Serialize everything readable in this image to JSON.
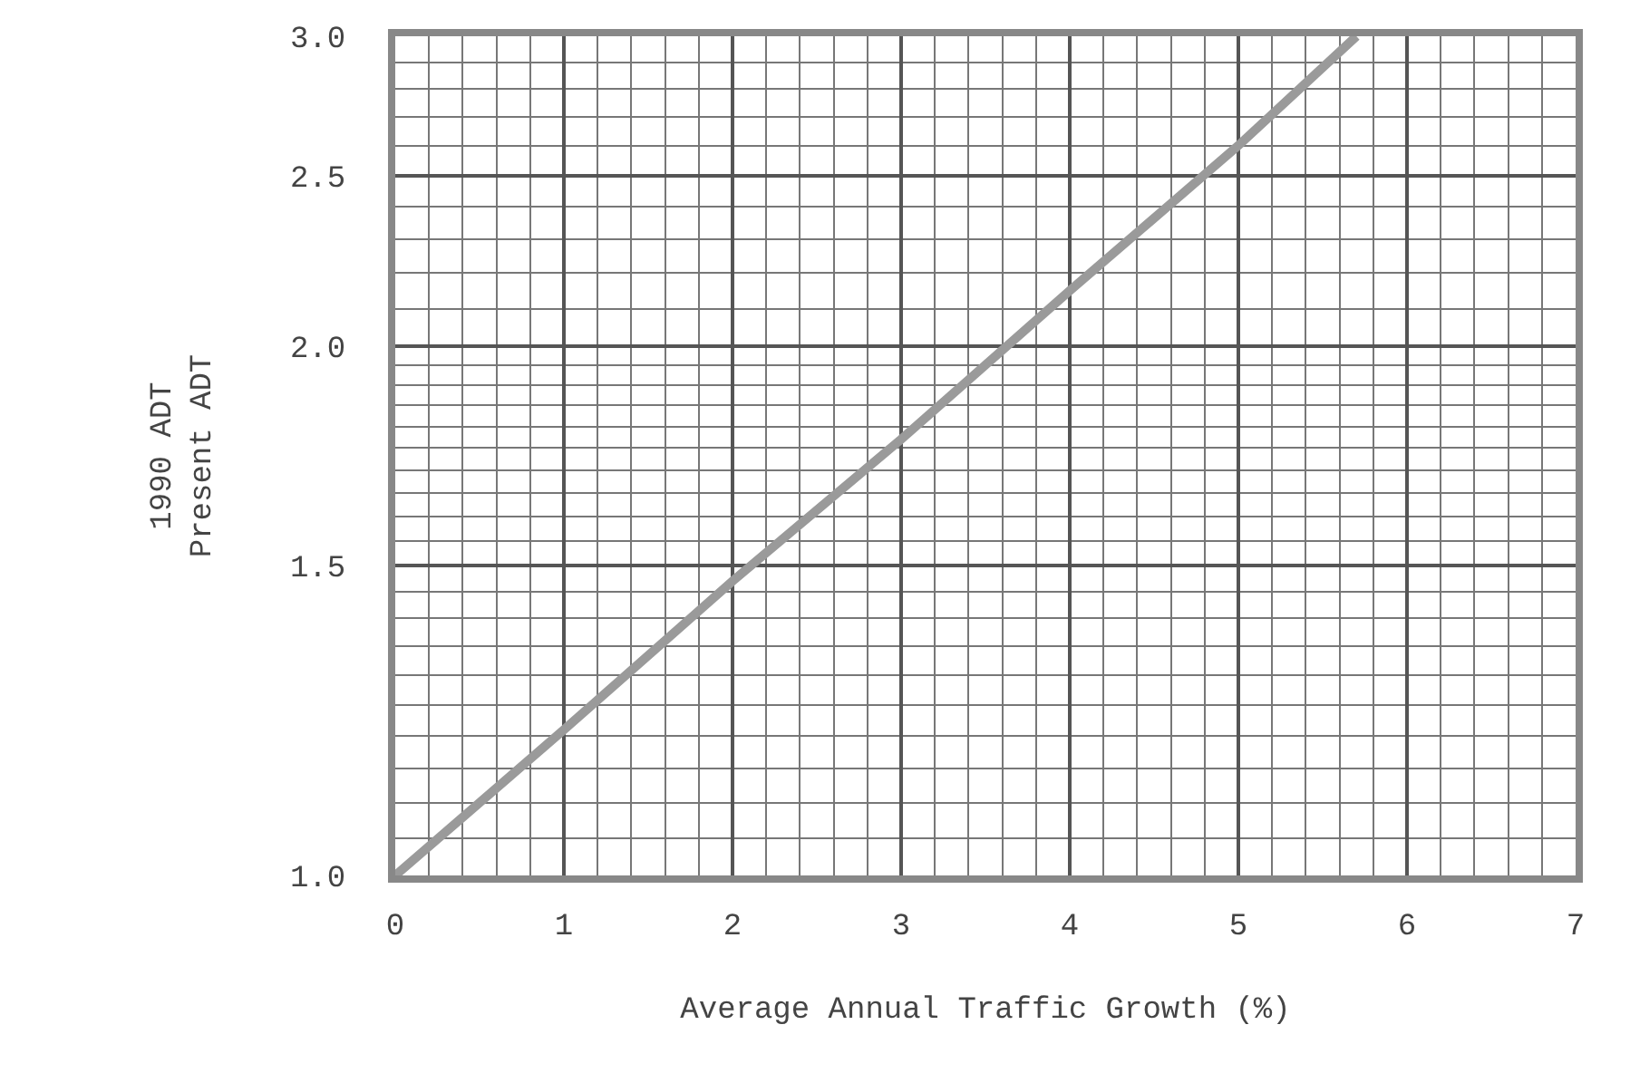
{
  "chart_data": {
    "type": "line",
    "xlabel": "Average Annual Traffic Growth (%)",
    "ylabel": "1990 ADT\nPresent ADT",
    "log": "y",
    "x": [
      0,
      1,
      2,
      3,
      4,
      5,
      5.7
    ],
    "series": [
      {
        "color": "#9a9a9a",
        "values": [
          1.0,
          1.21,
          1.47,
          1.77,
          2.15,
          2.6,
          3.0
        ]
      }
    ],
    "xlim": [
      0,
      7
    ],
    "xticks": [
      0,
      1,
      2,
      3,
      4,
      5,
      6,
      7
    ],
    "ylim": [
      1,
      3
    ],
    "yticks": [
      {
        "value": 1,
        "label": "1.0"
      },
      {
        "value": 1.5,
        "label": "1.5"
      },
      {
        "value": 2,
        "label": "2.0"
      },
      {
        "value": 2.5,
        "label": "2.5"
      },
      {
        "value": 3,
        "label": "3.0"
      }
    ],
    "grid": true,
    "marker": "none",
    "line_style": "solid"
  }
}
